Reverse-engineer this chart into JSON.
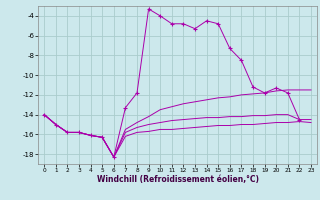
{
  "xlabel": "Windchill (Refroidissement éolien,°C)",
  "background_color": "#cce8ec",
  "grid_color": "#aacccc",
  "line_color": "#aa00aa",
  "x_ticks": [
    0,
    1,
    2,
    3,
    4,
    5,
    6,
    7,
    8,
    9,
    10,
    11,
    12,
    13,
    14,
    15,
    16,
    17,
    18,
    19,
    20,
    21,
    22,
    23
  ],
  "ylim": [
    -19,
    -3
  ],
  "xlim": [
    -0.5,
    23.5
  ],
  "yticks": [
    -18,
    -16,
    -14,
    -12,
    -10,
    -8,
    -6,
    -4
  ],
  "series": [
    {
      "x": [
        0,
        1,
        2,
        3,
        4,
        5,
        6,
        7,
        8,
        9,
        10,
        11,
        12,
        13,
        14,
        15,
        16,
        17,
        18,
        19,
        20,
        21,
        22,
        23
      ],
      "y": [
        -14.0,
        -15.0,
        -15.8,
        -15.8,
        -16.1,
        -16.3,
        -18.3,
        -13.3,
        -11.8,
        -3.3,
        -4.0,
        -4.8,
        -4.8,
        -5.3,
        -4.5,
        -4.8,
        -7.3,
        -8.5,
        -11.2,
        -11.8,
        -11.3,
        -11.8,
        -14.5,
        null
      ],
      "marker": "+",
      "style": "-",
      "x_end": 22
    },
    {
      "x": [
        0,
        1,
        2,
        3,
        4,
        5,
        6,
        7,
        8,
        9,
        10,
        11,
        12,
        13,
        14,
        15,
        16,
        17,
        18,
        19,
        20,
        21,
        22,
        23
      ],
      "y": [
        -14.0,
        -15.0,
        -15.8,
        -15.8,
        -16.1,
        -16.3,
        -18.3,
        -15.5,
        -14.8,
        -14.2,
        -13.5,
        -13.2,
        -12.9,
        -12.7,
        -12.5,
        -12.3,
        -12.2,
        -12.0,
        -11.9,
        -11.8,
        -11.6,
        -11.5,
        -11.5,
        -11.5
      ],
      "marker": "None",
      "style": "-"
    },
    {
      "x": [
        0,
        1,
        2,
        3,
        4,
        5,
        6,
        7,
        8,
        9,
        10,
        11,
        12,
        13,
        14,
        15,
        16,
        17,
        18,
        19,
        20,
        21,
        22,
        23
      ],
      "y": [
        -14.0,
        -15.0,
        -15.8,
        -15.8,
        -16.1,
        -16.3,
        -18.3,
        -15.8,
        -15.3,
        -15.0,
        -14.8,
        -14.6,
        -14.5,
        -14.4,
        -14.3,
        -14.3,
        -14.2,
        -14.2,
        -14.1,
        -14.1,
        -14.0,
        -14.0,
        -14.5,
        -14.5
      ],
      "marker": "None",
      "style": "-"
    },
    {
      "x": [
        0,
        1,
        2,
        3,
        4,
        5,
        6,
        7,
        8,
        9,
        10,
        11,
        12,
        13,
        14,
        15,
        16,
        17,
        18,
        19,
        20,
        21,
        22,
        23
      ],
      "y": [
        -14.0,
        -15.0,
        -15.8,
        -15.8,
        -16.1,
        -16.3,
        -18.3,
        -16.2,
        -15.8,
        -15.7,
        -15.5,
        -15.5,
        -15.4,
        -15.3,
        -15.2,
        -15.1,
        -15.1,
        -15.0,
        -15.0,
        -14.9,
        -14.8,
        -14.8,
        -14.7,
        -14.8
      ],
      "marker": "None",
      "style": "-"
    }
  ]
}
